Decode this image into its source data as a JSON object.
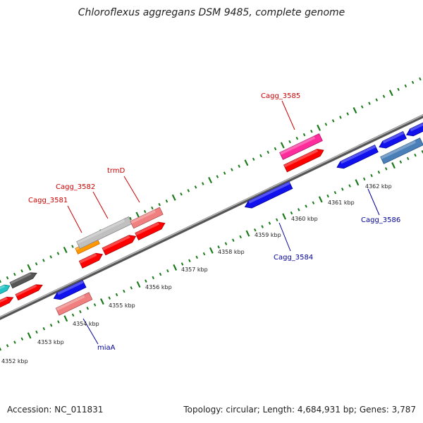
{
  "title": "Chloroflexus aggregans DSM 9485, complete genome",
  "footer": {
    "accession": "Accession: NC_011831",
    "stats": "Topology: circular; Length: 4,684,931 bp; Genes: 3,787"
  },
  "colors": {
    "forward_label": "#cc0000",
    "reverse_label": "#000099",
    "backbone": "#8c8c8c",
    "tick": "#1a7a1a"
  },
  "genes": [
    {
      "name": "Cagg_3581",
      "strand": "forward",
      "color": "#ff0000"
    },
    {
      "name": "Cagg_3582",
      "strand": "forward",
      "color": "#ff0000"
    },
    {
      "name": "trmD",
      "strand": "forward",
      "color": "#ff0000"
    },
    {
      "name": "Cagg_3585",
      "strand": "forward",
      "color": "#ff0000"
    },
    {
      "name": "miaA",
      "strand": "reverse",
      "color": "#1111ee"
    },
    {
      "name": "Cagg_3584",
      "strand": "reverse",
      "color": "#1111ee"
    },
    {
      "name": "Cagg_3586",
      "strand": "reverse",
      "color": "#1111ee"
    }
  ],
  "scale": [
    {
      "label": "4352 kbp"
    },
    {
      "label": "4353 kbp"
    },
    {
      "label": "4354 kbp"
    },
    {
      "label": "4355 kbp"
    },
    {
      "label": "4356 kbp"
    },
    {
      "label": "4357 kbp"
    },
    {
      "label": "4358 kbp"
    },
    {
      "label": "4359 kbp"
    },
    {
      "label": "4360 kbp"
    },
    {
      "label": "4361 kbp"
    },
    {
      "label": "4362 kbp"
    }
  ]
}
